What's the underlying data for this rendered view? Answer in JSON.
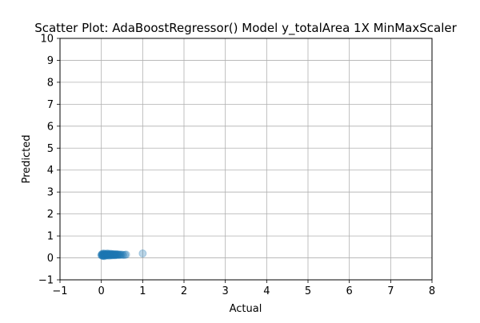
{
  "chart_data": {
    "type": "scatter",
    "title": "Scatter Plot: AdaBoostRegressor() Model y_totalArea 1X MinMaxScaler",
    "xlabel": "Actual",
    "ylabel": "Predicted",
    "xlim": [
      -1,
      8
    ],
    "ylim": [
      -1,
      10
    ],
    "x_ticks": [
      "−1",
      "0",
      "1",
      "2",
      "3",
      "4",
      "5",
      "6",
      "7",
      "8"
    ],
    "y_ticks": [
      "−1",
      "0",
      "1",
      "2",
      "3",
      "4",
      "5",
      "6",
      "7",
      "8",
      "9",
      "10"
    ],
    "grid": true,
    "point_color": "#1f77b4",
    "point_alpha": 0.3,
    "points": [
      {
        "x": 0.0,
        "y": 0.12
      },
      {
        "x": 0.01,
        "y": 0.15
      },
      {
        "x": 0.02,
        "y": 0.1
      },
      {
        "x": 0.02,
        "y": 0.18
      },
      {
        "x": 0.03,
        "y": 0.13
      },
      {
        "x": 0.04,
        "y": 0.09
      },
      {
        "x": 0.04,
        "y": 0.16
      },
      {
        "x": 0.05,
        "y": 0.2
      },
      {
        "x": 0.05,
        "y": 0.11
      },
      {
        "x": 0.06,
        "y": 0.14
      },
      {
        "x": 0.07,
        "y": 0.17
      },
      {
        "x": 0.07,
        "y": 0.08
      },
      {
        "x": 0.08,
        "y": 0.12
      },
      {
        "x": 0.09,
        "y": 0.19
      },
      {
        "x": 0.1,
        "y": 0.14
      },
      {
        "x": 0.1,
        "y": 0.1
      },
      {
        "x": 0.11,
        "y": 0.16
      },
      {
        "x": 0.12,
        "y": 0.13
      },
      {
        "x": 0.13,
        "y": 0.18
      },
      {
        "x": 0.14,
        "y": 0.11
      },
      {
        "x": 0.15,
        "y": 0.15
      },
      {
        "x": 0.15,
        "y": 0.2
      },
      {
        "x": 0.16,
        "y": 0.12
      },
      {
        "x": 0.17,
        "y": 0.17
      },
      {
        "x": 0.18,
        "y": 0.14
      },
      {
        "x": 0.19,
        "y": 0.1
      },
      {
        "x": 0.2,
        "y": 0.16
      },
      {
        "x": 0.21,
        "y": 0.19
      },
      {
        "x": 0.22,
        "y": 0.13
      },
      {
        "x": 0.23,
        "y": 0.15
      },
      {
        "x": 0.24,
        "y": 0.11
      },
      {
        "x": 0.25,
        "y": 0.18
      },
      {
        "x": 0.26,
        "y": 0.14
      },
      {
        "x": 0.27,
        "y": 0.16
      },
      {
        "x": 0.28,
        "y": 0.12
      },
      {
        "x": 0.29,
        "y": 0.17
      },
      {
        "x": 0.3,
        "y": 0.15
      },
      {
        "x": 0.31,
        "y": 0.13
      },
      {
        "x": 0.32,
        "y": 0.16
      },
      {
        "x": 0.33,
        "y": 0.12
      },
      {
        "x": 0.34,
        "y": 0.15
      },
      {
        "x": 0.35,
        "y": 0.14
      },
      {
        "x": 0.36,
        "y": 0.17
      },
      {
        "x": 0.37,
        "y": 0.13
      },
      {
        "x": 0.38,
        "y": 0.15
      },
      {
        "x": 0.4,
        "y": 0.14
      },
      {
        "x": 0.41,
        "y": 0.16
      },
      {
        "x": 0.43,
        "y": 0.13
      },
      {
        "x": 0.45,
        "y": 0.15
      },
      {
        "x": 0.47,
        "y": 0.14
      },
      {
        "x": 0.5,
        "y": 0.15
      },
      {
        "x": 0.53,
        "y": 0.13
      },
      {
        "x": 0.57,
        "y": 0.14
      },
      {
        "x": 0.6,
        "y": 0.15
      },
      {
        "x": 1.0,
        "y": 0.2
      }
    ]
  }
}
